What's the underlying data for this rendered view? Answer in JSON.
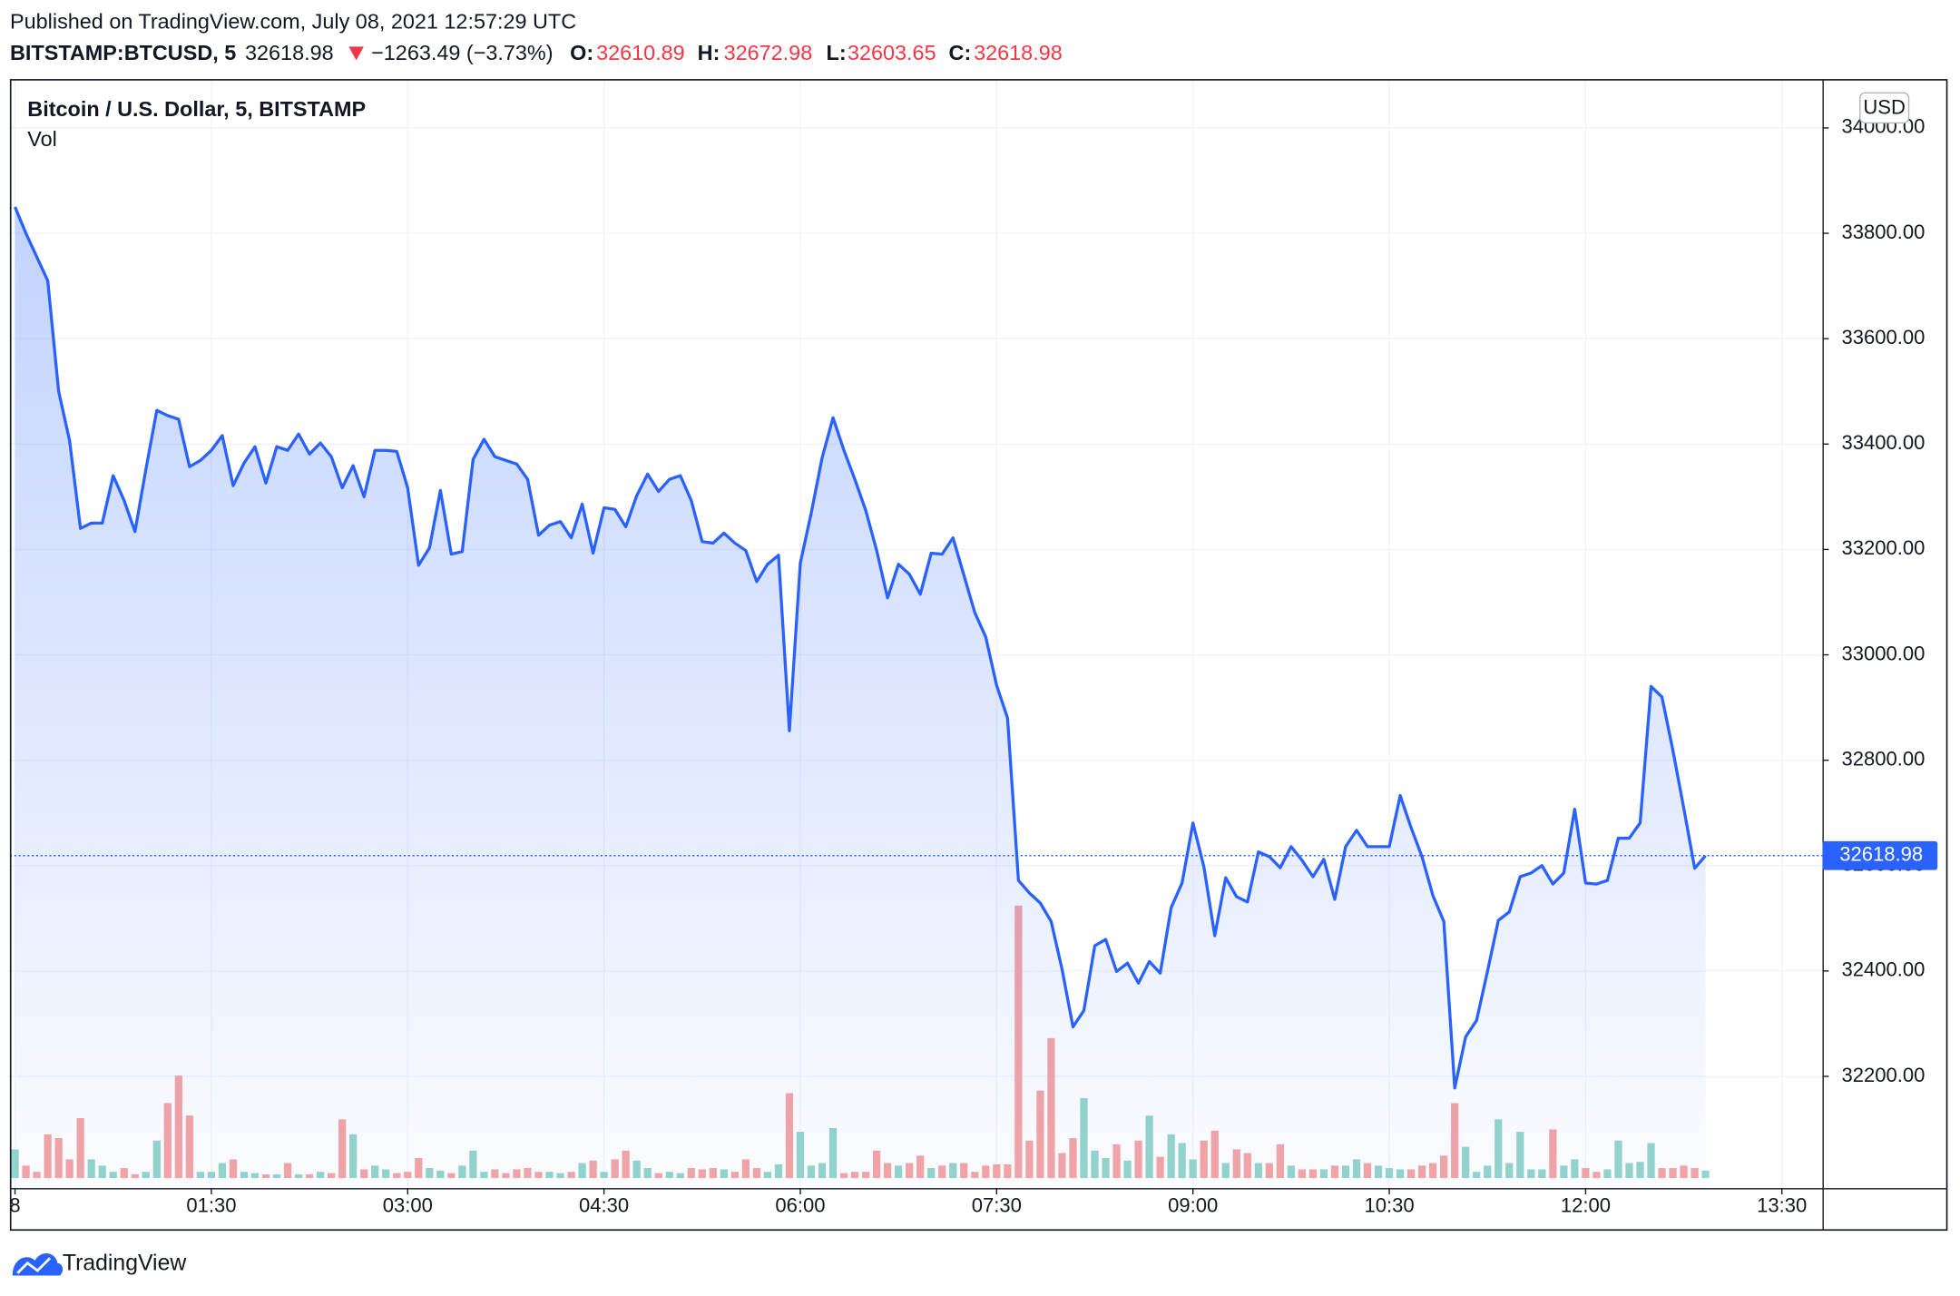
{
  "header": {
    "published": "Published on TradingView.com, July 08, 2021 12:57:29 UTC",
    "symbol": "BITSTAMP:BTCUSD, 5",
    "change": "−1263.49 (−3.73%)",
    "ohlc": [
      {
        "label": "O:",
        "value": 32610.89
      },
      {
        "label": "H:",
        "value": 32672.98
      },
      {
        "label": "L:",
        "value": 32603.65
      },
      {
        "label": "C:",
        "value": 32618.98
      }
    ]
  },
  "footer": {
    "brand": "TradingView"
  },
  "chart_data": {
    "type": "area",
    "title": "Bitcoin / U.S. Dollar, 5, BITSTAMP",
    "volume_label": "Vol",
    "currency": "USD",
    "color": "#2962ff",
    "volume_colors": {
      "up": "#95d5cb",
      "down": "#f5a5a5"
    },
    "grid": true,
    "x": [
      0,
      5,
      10,
      15,
      20,
      25,
      30,
      35,
      40,
      45,
      50,
      55,
      60,
      65,
      70,
      75,
      80,
      85,
      90,
      95,
      100,
      105,
      110,
      115,
      120,
      125,
      130,
      135,
      140,
      145,
      150,
      155,
      160,
      165,
      170,
      175,
      180,
      185,
      190,
      195,
      200,
      205,
      210,
      215,
      220,
      225,
      230,
      235,
      240,
      245,
      250,
      255,
      260,
      265,
      270,
      275,
      280,
      285,
      290,
      295,
      300,
      305,
      310,
      315,
      320,
      325,
      330,
      335,
      340,
      345,
      350,
      355,
      360,
      365,
      370,
      375,
      380,
      385,
      390,
      395,
      400,
      405,
      410,
      415,
      420,
      425,
      430,
      435,
      440,
      445,
      450,
      455,
      460,
      465,
      470,
      475,
      480,
      485,
      490,
      495,
      500,
      505,
      510,
      515,
      520,
      525,
      530,
      535,
      540,
      545,
      550,
      555,
      560,
      565,
      570,
      575,
      580,
      585,
      590,
      595,
      600,
      605,
      610,
      615,
      620,
      625,
      630,
      635,
      640,
      645,
      650,
      655,
      660,
      665,
      670,
      675,
      680,
      685,
      690,
      695,
      700,
      705,
      710,
      715,
      720,
      725,
      730,
      735,
      740,
      745,
      750,
      755,
      760,
      765,
      770,
      775
    ],
    "values": [
      33850,
      33800,
      33755,
      33710,
      33500,
      33407,
      33240,
      33250,
      33250,
      33340,
      33293,
      33234,
      33352,
      33464,
      33454,
      33447,
      33357,
      33369,
      33388,
      33416,
      33321,
      33364,
      33395,
      33326,
      33395,
      33388,
      33419,
      33381,
      33402,
      33376,
      33317,
      33359,
      33300,
      33388,
      33388,
      33386,
      33317,
      33170,
      33203,
      33312,
      33191,
      33196,
      33371,
      33409,
      33376,
      33369,
      33362,
      33333,
      33227,
      33246,
      33253,
      33222,
      33286,
      33193,
      33279,
      33276,
      33243,
      33302,
      33343,
      33310,
      33333,
      33340,
      33293,
      33215,
      33212,
      33231,
      33212,
      33198,
      33139,
      33172,
      33189,
      32856,
      33174,
      33269,
      33374,
      33450,
      33388,
      33333,
      33274,
      33198,
      33108,
      33172,
      33153,
      33115,
      33193,
      33191,
      33222,
      33151,
      33080,
      33034,
      32942,
      32880,
      32572,
      32548,
      32529,
      32494,
      32403,
      32294,
      32325,
      32448,
      32460,
      32399,
      32415,
      32377,
      32418,
      32396,
      32520,
      32567,
      32681,
      32598,
      32467,
      32577,
      32541,
      32531,
      32626,
      32617,
      32596,
      32636,
      32610,
      32579,
      32612,
      32536,
      32636,
      32667,
      32636,
      32636,
      32636,
      32733,
      32672,
      32617,
      32543,
      32494,
      32178,
      32275,
      32306,
      32399,
      32496,
      32512,
      32579,
      32586,
      32600,
      32565,
      32586,
      32707,
      32567,
      32565,
      32572,
      32652,
      32652,
      32681,
      32940,
      32920,
      32819,
      32709,
      32595,
      32618.98
    ],
    "volume": [
      23,
      10,
      5,
      35,
      32,
      15,
      48,
      15,
      10,
      5,
      8,
      3,
      5,
      30,
      60,
      82,
      50,
      5,
      5,
      12,
      15,
      5,
      4,
      3,
      3,
      12,
      3,
      3,
      5,
      4,
      47,
      35,
      7,
      10,
      7,
      4,
      5,
      16,
      8,
      6,
      4,
      10,
      22,
      5,
      7,
      4,
      7,
      8,
      5,
      5,
      4,
      5,
      12,
      14,
      5,
      15,
      22,
      14,
      8,
      4,
      5,
      4,
      8,
      7,
      8,
      7,
      5,
      15,
      8,
      5,
      11,
      68,
      37,
      10,
      12,
      40,
      4,
      5,
      5,
      22,
      12,
      10,
      12,
      18,
      8,
      10,
      12,
      12,
      5,
      10,
      11,
      11,
      218,
      30,
      70,
      112,
      20,
      32,
      64,
      22,
      16,
      27,
      14,
      30,
      50,
      17,
      35,
      28,
      15,
      30,
      38,
      12,
      23,
      20,
      12,
      12,
      27,
      10,
      7,
      7,
      7,
      10,
      10,
      15,
      12,
      10,
      8,
      7,
      7,
      10,
      12,
      18,
      60,
      25,
      5,
      10,
      47,
      12,
      37,
      7,
      7,
      39,
      10,
      15,
      8,
      5,
      7,
      30,
      12,
      13,
      28,
      8,
      8,
      10,
      8,
      6
    ],
    "xlim": [
      -2.3,
      828.6
    ],
    "xticks": [
      {
        "value": 0,
        "label": "8"
      },
      {
        "value": 90,
        "label": "01:30"
      },
      {
        "value": 180,
        "label": "03:00"
      },
      {
        "value": 270,
        "label": "04:30"
      },
      {
        "value": 360,
        "label": "06:00"
      },
      {
        "value": 450,
        "label": "07:30"
      },
      {
        "value": 540,
        "label": "09:00"
      },
      {
        "value": 630,
        "label": "10:30"
      },
      {
        "value": 720,
        "label": "12:00"
      },
      {
        "value": 810,
        "label": "13:30"
      }
    ],
    "ylim": [
      31988,
      34092.5
    ],
    "yticks": [
      {
        "value": 32200,
        "label": "32200.00"
      },
      {
        "value": 32400,
        "label": "32400.00"
      },
      {
        "value": 32600,
        "label": "32600.00"
      },
      {
        "value": 32800,
        "label": "32800.00"
      },
      {
        "value": 33000,
        "label": "33000.00"
      },
      {
        "value": 33200,
        "label": "33200.00"
      },
      {
        "value": 33400,
        "label": "33400.00"
      },
      {
        "value": 33600,
        "label": "33600.00"
      },
      {
        "value": 33800,
        "label": "33800.00"
      },
      {
        "value": 34000,
        "label": "34000.00"
      }
    ]
  }
}
